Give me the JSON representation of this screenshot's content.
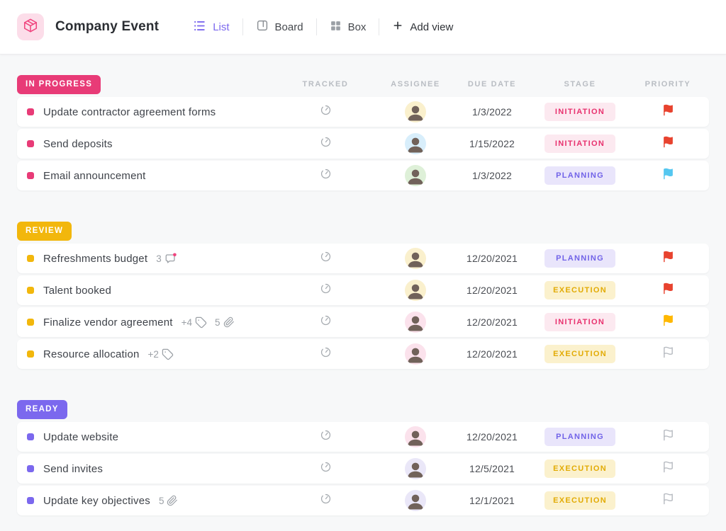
{
  "header": {
    "title": "Company Event",
    "logo_icon": "cube-icon",
    "views": [
      {
        "label": "List",
        "icon": "list-icon",
        "active": true
      },
      {
        "label": "Board",
        "icon": "board-icon",
        "active": false
      },
      {
        "label": "Box",
        "icon": "box-icon",
        "active": false
      }
    ],
    "add_view_label": "Add view",
    "add_view_icon": "plus-icon"
  },
  "columns": [
    "TRACKED",
    "ASSIGNEE",
    "DUE DATE",
    "STAGE",
    "PRIORITY"
  ],
  "groups": [
    {
      "name": "IN PROGRESS",
      "color": "#e83b77",
      "tasks": [
        {
          "name": "Update contractor agreement forms",
          "meta": [],
          "due": "1/3/2022",
          "stage": "INITIATION",
          "priority": "red",
          "avatar_bg": "#faf0cd"
        },
        {
          "name": "Send deposits",
          "meta": [],
          "due": "1/15/2022",
          "stage": "INITIATION",
          "priority": "red",
          "avatar_bg": "#d8eefb"
        },
        {
          "name": "Email announcement",
          "meta": [],
          "due": "1/3/2022",
          "stage": "PLANNING",
          "priority": "blue",
          "avatar_bg": "#def0d8"
        }
      ]
    },
    {
      "name": "REVIEW",
      "color": "#f2b70c",
      "tasks": [
        {
          "name": "Refreshments budget",
          "meta": [
            {
              "type": "comments",
              "count": "3",
              "unread": true
            }
          ],
          "due": "12/20/2021",
          "stage": "PLANNING",
          "priority": "red",
          "avatar_bg": "#faf0cd"
        },
        {
          "name": "Talent booked",
          "meta": [],
          "due": "12/20/2021",
          "stage": "EXECUTION",
          "priority": "red",
          "avatar_bg": "#faf0cd"
        },
        {
          "name": "Finalize vendor agreement",
          "meta": [
            {
              "type": "tags",
              "count": "+4"
            },
            {
              "type": "attachments",
              "count": "5"
            }
          ],
          "due": "12/20/2021",
          "stage": "INITIATION",
          "priority": "yellow",
          "avatar_bg": "#fbe2ec"
        },
        {
          "name": "Resource allocation",
          "meta": [
            {
              "type": "tags",
              "count": "+2"
            }
          ],
          "due": "12/20/2021",
          "stage": "EXECUTION",
          "priority": "none",
          "avatar_bg": "#fbe2ec"
        }
      ]
    },
    {
      "name": "READY",
      "color": "#7b68ee",
      "tasks": [
        {
          "name": "Update website",
          "meta": [],
          "due": "12/20/2021",
          "stage": "PLANNING",
          "priority": "none",
          "avatar_bg": "#fbe2ec"
        },
        {
          "name": "Send invites",
          "meta": [],
          "due": "12/5/2021",
          "stage": "EXECUTION",
          "priority": "none",
          "avatar_bg": "#eae7f8"
        },
        {
          "name": "Update key objectives",
          "meta": [
            {
              "type": "attachments",
              "count": "5"
            }
          ],
          "due": "12/1/2021",
          "stage": "EXECUTION",
          "priority": "none",
          "avatar_bg": "#eae7f8"
        }
      ]
    }
  ],
  "stage_styles": {
    "INITIATION": {
      "bg": "#fce9f0",
      "color": "#e8326f"
    },
    "PLANNING": {
      "bg": "#e9e5fb",
      "color": "#7163e8"
    },
    "EXECUTION": {
      "bg": "#fbf1cd",
      "color": "#e2ab05"
    }
  },
  "priority_colors": {
    "red": "#e8432f",
    "blue": "#55c7f0",
    "yellow": "#ffb800",
    "none": "#b6bac0"
  },
  "misc_colors": {
    "accent_purple": "#7b68ee",
    "logo_pink": "#f0447e",
    "unread_dot": "#f0447e",
    "tracked_icon_gray": "#a6abb0"
  }
}
